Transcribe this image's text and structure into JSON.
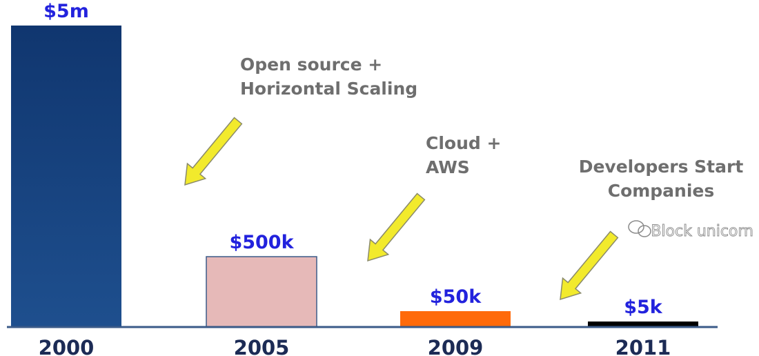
{
  "chart_data": {
    "type": "bar",
    "title": "",
    "xlabel": "",
    "ylabel": "",
    "categories": [
      "2000",
      "2005",
      "2009",
      "2011"
    ],
    "values": [
      5000000,
      500000,
      50000,
      5000
    ],
    "data_labels": [
      "$5m",
      "$500k",
      "$50k",
      "$5k"
    ],
    "bar_colors": [
      "#17427e",
      "#e6b9b8",
      "#ff6a0a",
      "#000000"
    ],
    "annotations": [
      {
        "lines": [
          "Open source +",
          "Horizontal Scaling"
        ]
      },
      {
        "lines": [
          "Cloud +",
          "AWS"
        ]
      },
      {
        "lines": [
          "Developers Start",
          "Companies"
        ]
      }
    ],
    "arrow_color": "#f2ea2c",
    "label_color": "#2222dd",
    "grid": false,
    "legend": "none"
  },
  "watermark": {
    "text": "Block unicorn",
    "icon": "wechat-icon"
  }
}
